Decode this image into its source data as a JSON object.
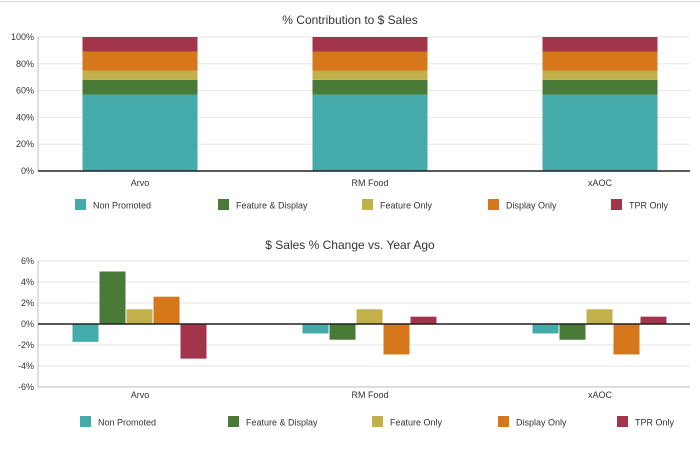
{
  "chart_data": [
    {
      "type": "bar",
      "stacked": true,
      "title": "% Contribution to $ Sales",
      "categories": [
        "Arvo",
        "RM Food",
        "xAOC"
      ],
      "ylim": [
        0,
        100
      ],
      "yticks": [
        0,
        20,
        40,
        60,
        80,
        100
      ],
      "ytick_labels": [
        "0%",
        "20%",
        "40%",
        "60%",
        "80%",
        "100%"
      ],
      "grid": true,
      "legend_position": "bottom",
      "series": [
        {
          "name": "Non Promoted",
          "color": "#44AAAA",
          "values": [
            57,
            57,
            57
          ]
        },
        {
          "name": "Feature & Display",
          "color": "#4A7A37",
          "values": [
            11,
            11,
            11
          ]
        },
        {
          "name": "Feature Only",
          "color": "#C2B04A",
          "values": [
            7,
            7,
            7
          ]
        },
        {
          "name": "Display Only",
          "color": "#D5771A",
          "values": [
            14,
            14,
            14
          ]
        },
        {
          "name": "TPR Only",
          "color": "#A3354A",
          "values": [
            11,
            11,
            11
          ]
        }
      ]
    },
    {
      "type": "bar",
      "stacked": false,
      "title": "$ Sales % Change vs. Year Ago",
      "categories": [
        "Arvo",
        "RM Food",
        "xAOC"
      ],
      "ylim": [
        -6,
        6
      ],
      "yticks": [
        -6,
        -4,
        -2,
        0,
        2,
        4,
        6
      ],
      "ytick_labels": [
        "-6%",
        "-4%",
        "-2%",
        "0%",
        "2%",
        "4%",
        "6%"
      ],
      "grid": true,
      "legend_position": "bottom",
      "series": [
        {
          "name": "Non Promoted",
          "color": "#44AAAA",
          "values": [
            -1.7,
            -0.9,
            -0.9
          ]
        },
        {
          "name": "Feature & Display",
          "color": "#4A7A37",
          "values": [
            5.0,
            -1.5,
            -1.5
          ]
        },
        {
          "name": "Feature Only",
          "color": "#C2B04A",
          "values": [
            1.4,
            1.4,
            1.4
          ]
        },
        {
          "name": "Display Only",
          "color": "#D5771A",
          "values": [
            2.6,
            -2.9,
            -2.9
          ]
        },
        {
          "name": "TPR Only",
          "color": "#A3354A",
          "values": [
            -3.3,
            0.7,
            0.7
          ]
        }
      ]
    }
  ]
}
